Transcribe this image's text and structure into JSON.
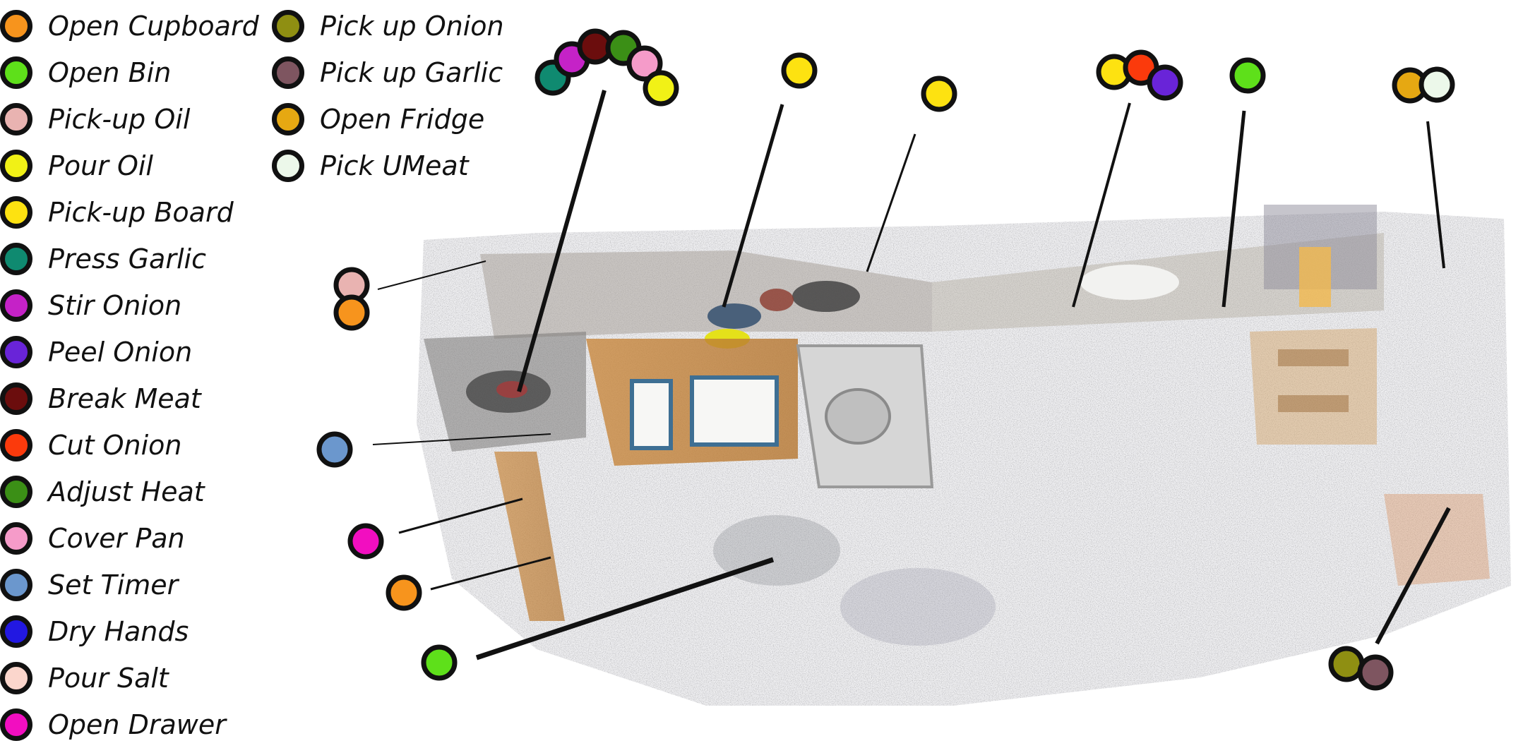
{
  "legend": [
    {
      "label": "Open Cupboard",
      "color": "#f7941d"
    },
    {
      "label": "Open Bin",
      "color": "#5ee01a"
    },
    {
      "label": "Pick-up Oil",
      "color": "#e9b3b1"
    },
    {
      "label": "Pour Oil",
      "color": "#f1f116"
    },
    {
      "label": "Pick-up Board",
      "color": "#fde211"
    },
    {
      "label": "Press Garlic",
      "color": "#0f8a70"
    },
    {
      "label": "Stir Onion",
      "color": "#c522c7"
    },
    {
      "label": "Peel Onion",
      "color": "#6924d8"
    },
    {
      "label": "Break Meat",
      "color": "#6b0d0d"
    },
    {
      "label": "Cut Onion",
      "color": "#fb3a0c"
    },
    {
      "label": "Adjust Heat",
      "color": "#3b8f16"
    },
    {
      "label": "Cover Pan",
      "color": "#f59bc9"
    },
    {
      "label": "Set Timer",
      "color": "#6b97cd"
    },
    {
      "label": "Dry Hands",
      "color": "#2218e2"
    },
    {
      "label": "Pour Salt",
      "color": "#fbd6cc"
    },
    {
      "label": "Open Drawer",
      "color": "#f20ec0"
    },
    {
      "label": "Pick up Onion",
      "color": "#8f8f12"
    },
    {
      "label": "Pick up Garlic",
      "color": "#7e5560"
    },
    {
      "label": "Open Fridge",
      "color": "#e6a812"
    },
    {
      "label": "Pick UMeat",
      "color": "#ecf8ea"
    }
  ]
}
